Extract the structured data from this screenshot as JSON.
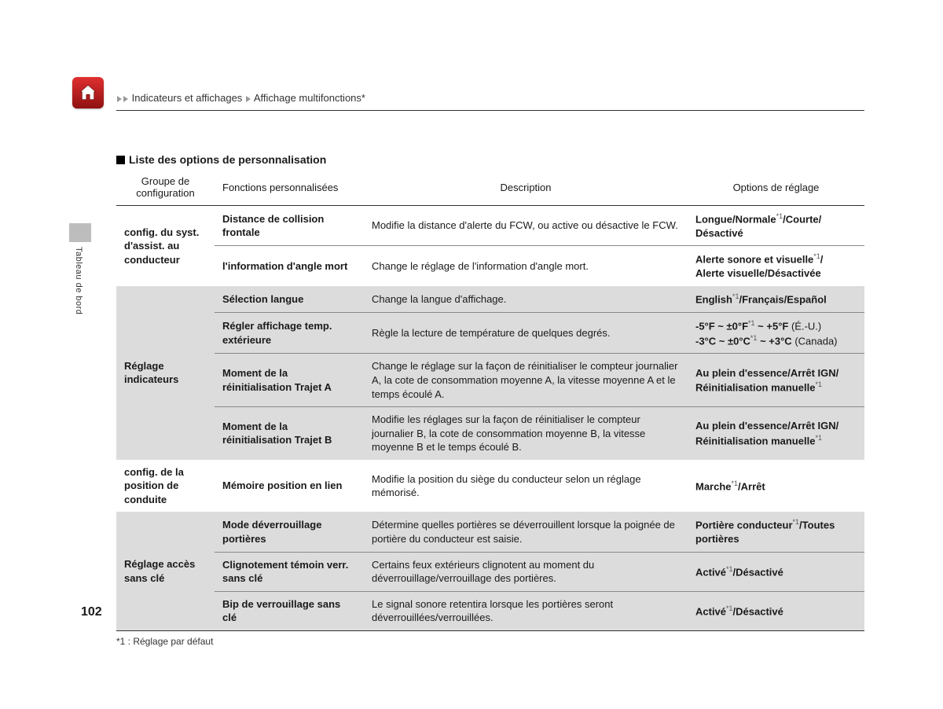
{
  "page_number": "102",
  "side_tab": "Tableau de bord",
  "breadcrumb": {
    "level1": "Indicateurs et affichages",
    "level2": "Affichage multifonctions",
    "asterisk": "*"
  },
  "section_title": "Liste des options de personnalisation",
  "footnote": "*1 : Réglage par défaut",
  "table": {
    "headers": {
      "group": "Groupe de configuration",
      "func": "Fonctions personnalisées",
      "desc": "Description",
      "opt": "Options de réglage"
    },
    "groups": [
      {
        "shaded": false,
        "group": "config. du syst. d'assist. au conducteur",
        "rows": [
          {
            "func": "Distance de collision frontale",
            "desc": "Modifie la distance d'alerte du FCW, ou active ou désactive le FCW.",
            "opt_html": "<b>Longue</b>/<b>Normale</b><sup>*1</sup>/<b>Courte</b>/<br><b>Désactivé</b>"
          },
          {
            "func": "l'information d'angle mort",
            "desc": "Change le réglage de l'information d'angle mort.",
            "opt_html": "<b>Alerte sonore et visuelle</b><sup>*1</sup>/<br><b>Alerte visuelle</b>/<b>Désactivée</b>"
          }
        ]
      },
      {
        "shaded": true,
        "group": "Réglage indicateurs",
        "rows": [
          {
            "func": "Sélection langue",
            "desc": "Change la langue d'affichage.",
            "opt_html": "<b>English</b><sup>*1</sup>/<b>Français</b>/<b>Español</b>"
          },
          {
            "func": "Régler affichage temp. extérieure",
            "desc": "Règle la lecture de température de quelques degrés.",
            "opt_html": "<b>-5°F ~ ±0°F</b><sup>*1</sup> <b>~ +5°F</b> <span class=\"nw\">(É.-U.)</span><br><b>-3°C ~ ±0°C</b><sup>*1</sup> <b>~ +3°C</b> <span class=\"nw\">(Canada)</span>"
          },
          {
            "func": "Moment de la réinitialisation Trajet A",
            "desc": "Change le réglage sur la façon de réinitialiser le compteur journalier A, la cote de consommation moyenne A, la vitesse moyenne A et le temps écoulé A.",
            "opt_html": "<b>Au plein d'essence</b>/<b>Arrêt IGN</b>/<br><b>Réinitialisation manuelle</b><sup>*1</sup>"
          },
          {
            "func": "Moment de la réinitialisation Trajet B",
            "desc": "Modifie les réglages sur la façon de réinitialiser le compteur journalier B, la cote de consommation moyenne B, la vitesse moyenne B et le temps écoulé B.",
            "opt_html": "<b>Au plein d'essence</b>/<b>Arrêt IGN</b>/<br><b>Réinitialisation manuelle</b><sup>*1</sup>"
          }
        ]
      },
      {
        "shaded": false,
        "group": "config. de la position de conduite",
        "rows": [
          {
            "func": "Mémoire position en lien",
            "desc": "Modifie la position du siège du conducteur selon un réglage mémorisé.",
            "opt_html": "<b>Marche</b><sup>*1</sup>/<b>Arrêt</b>"
          }
        ]
      },
      {
        "shaded": true,
        "group": "Réglage accès sans clé",
        "rows": [
          {
            "func": "Mode déverrouillage portières",
            "desc": "Détermine quelles portières se déverrouillent lorsque la poignée de portière du conducteur est saisie.",
            "opt_html": "<b>Portière conducteur</b><sup>*1</sup>/<b>Toutes portières</b>"
          },
          {
            "func": "Clignotement témoin verr. sans clé",
            "desc": "Certains feux extérieurs clignotent au moment du déverrouillage/verrouillage des portières.",
            "opt_html": "<b>Activé</b><sup>*1</sup>/<b>Désactivé</b>"
          },
          {
            "func": "Bip de verrouillage sans clé",
            "desc": "Le signal sonore retentira lorsque les portières seront déverrouillées/verrouillées.",
            "opt_html": "<b>Activé</b><sup>*1</sup>/<b>Désactivé</b>"
          }
        ]
      }
    ]
  }
}
